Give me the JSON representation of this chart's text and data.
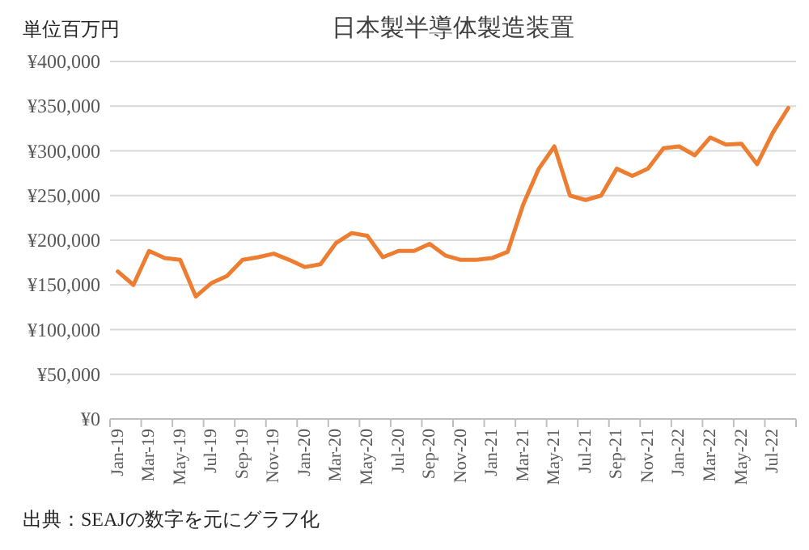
{
  "chart_data": {
    "type": "line",
    "title": "日本製半導体製造装置",
    "ylabel": "単位百万円",
    "categories": [
      "Jan-19",
      null,
      "Mar-19",
      null,
      "May-19",
      null,
      "Jul-19",
      null,
      "Sep-19",
      null,
      "Nov-19",
      null,
      "Jan-20",
      null,
      "Mar-20",
      null,
      "May-20",
      null,
      "Jul-20",
      null,
      "Sep-20",
      null,
      "Nov-20",
      null,
      "Jan-21",
      null,
      "Mar-21",
      null,
      "May-21",
      null,
      "Jul-21",
      null,
      "Sep-21",
      null,
      "Nov-21",
      null,
      "Jan-22",
      null,
      "Mar-22",
      null,
      "May-22",
      null,
      "Jul-22",
      null
    ],
    "series": [
      {
        "color": "#ed7d31",
        "values": [
          165000,
          150000,
          188000,
          180000,
          178000,
          137000,
          152000,
          160000,
          178000,
          181000,
          185000,
          178000,
          170000,
          173000,
          197000,
          208000,
          205000,
          181000,
          188000,
          188000,
          196000,
          183000,
          178000,
          178000,
          180000,
          187000,
          240000,
          280000,
          305000,
          250000,
          245000,
          250000,
          280000,
          272000,
          280000,
          303000,
          305000,
          295000,
          315000,
          307000,
          308000,
          285000,
          320000,
          348000
        ]
      }
    ],
    "ylim": [
      0,
      400000
    ],
    "yticks": [
      {
        "value": 0,
        "label": "¥0"
      },
      {
        "value": 50000,
        "label": "¥50,000"
      },
      {
        "value": 100000,
        "label": "¥100,000"
      },
      {
        "value": 150000,
        "label": "¥150,000"
      },
      {
        "value": 200000,
        "label": "¥200,000"
      },
      {
        "value": 250000,
        "label": "¥250,000"
      },
      {
        "value": 300000,
        "label": "¥300,000"
      },
      {
        "value": 350000,
        "label": "¥350,000"
      },
      {
        "value": 400000,
        "label": "¥400,000"
      }
    ],
    "grid": "y",
    "marker": "none",
    "line_style": "solid",
    "annotations": [
      "出典：SEAJの数字を元にグラフ化"
    ]
  }
}
